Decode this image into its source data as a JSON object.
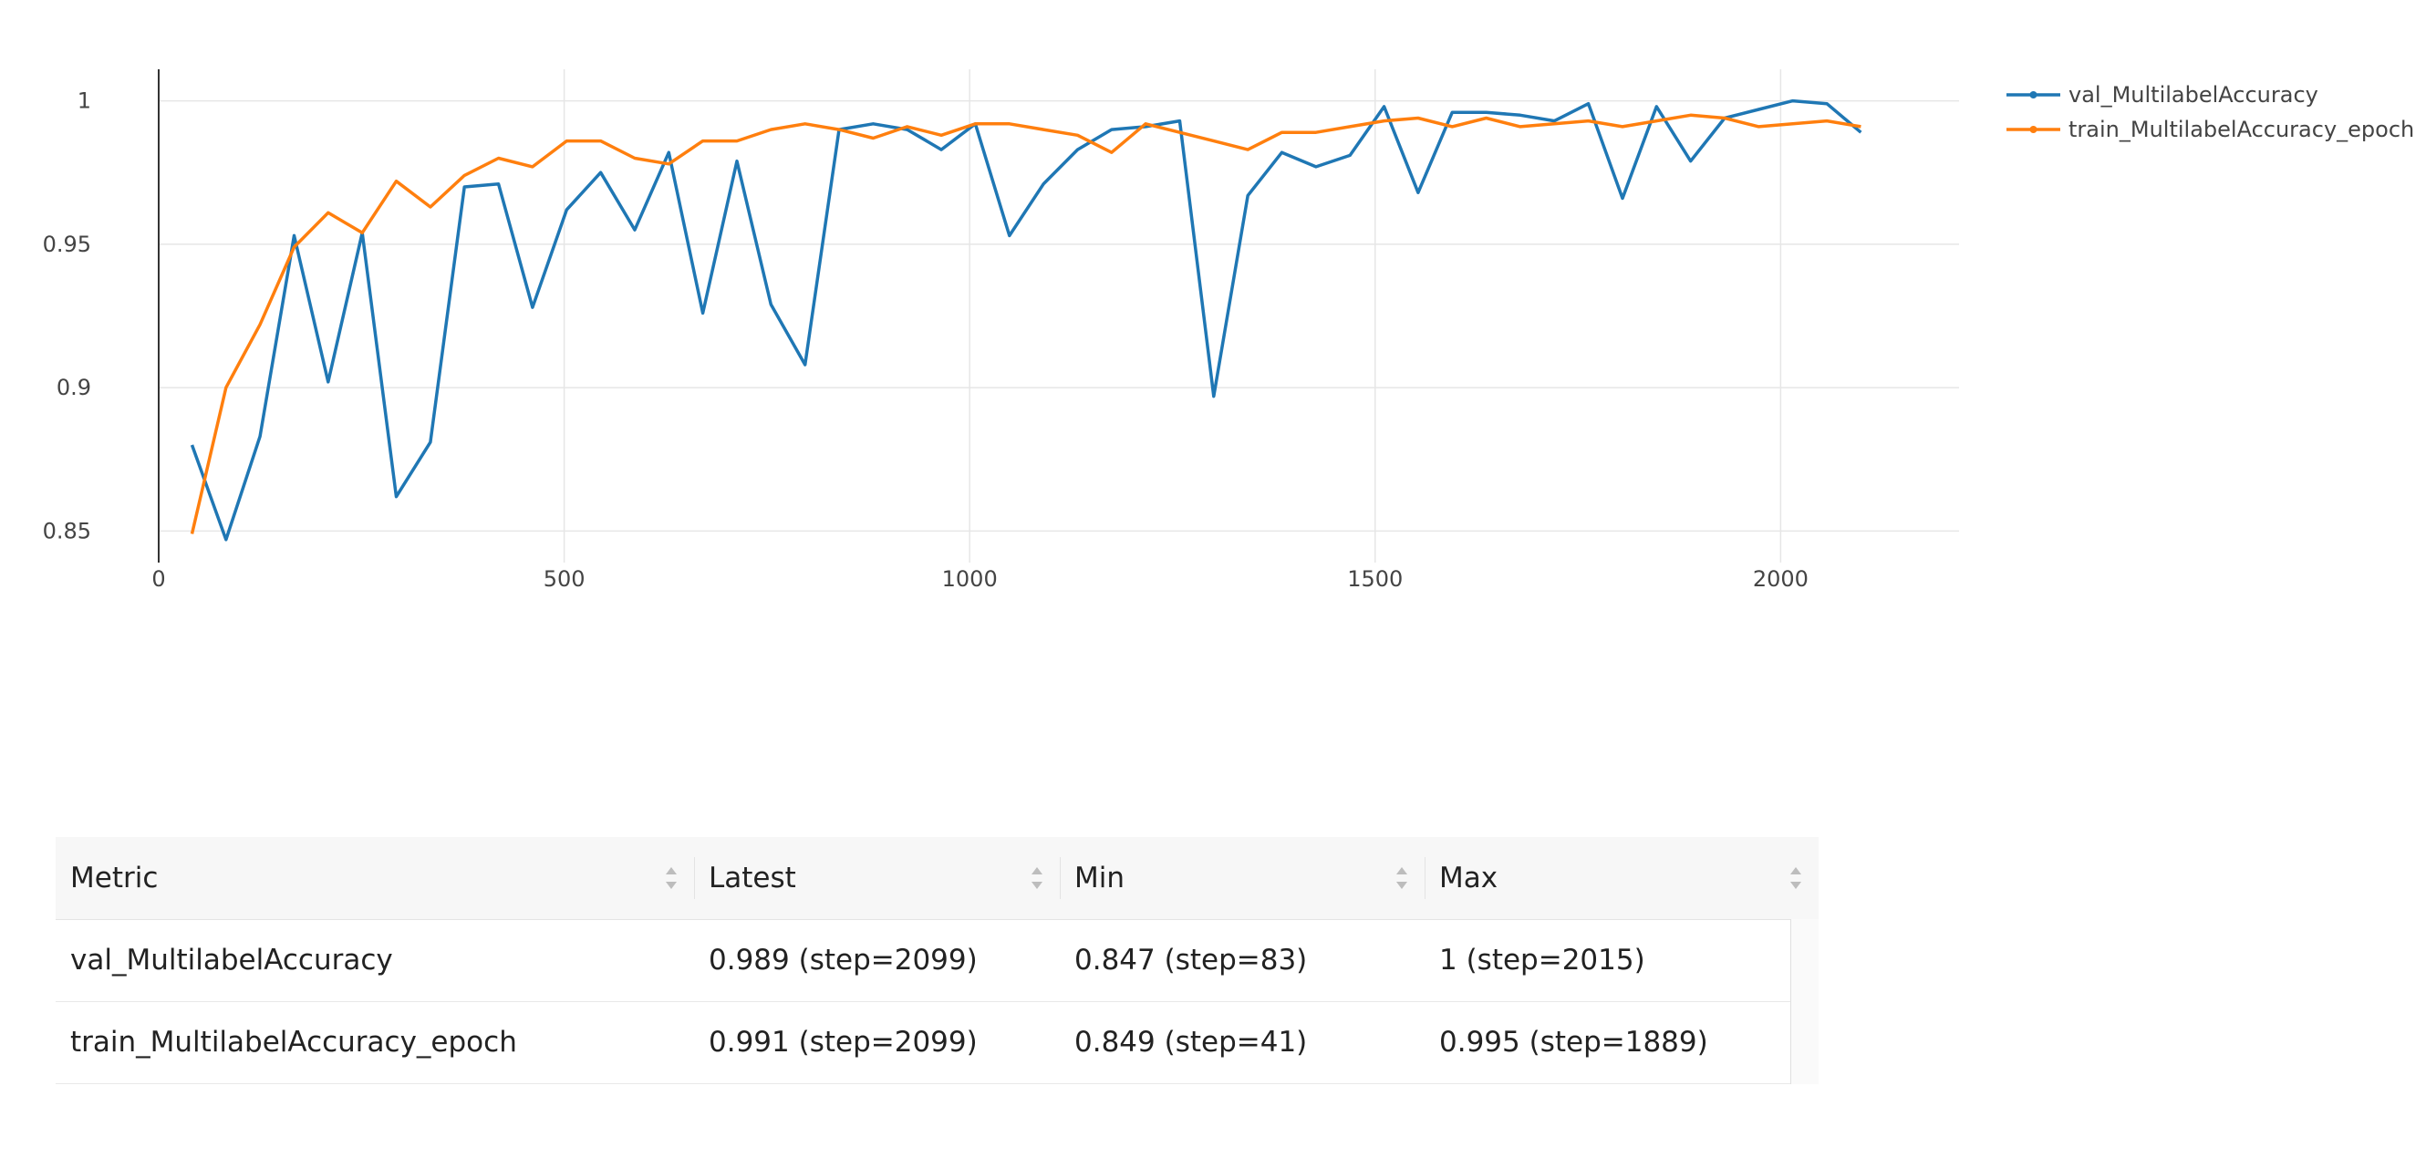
{
  "chart_data": {
    "type": "line",
    "xlim": [
      0,
      2220
    ],
    "ylim": [
      0.839,
      1.011
    ],
    "x_ticks": [
      0,
      500,
      1000,
      1500,
      2000
    ],
    "x_tick_labels": [
      "0",
      "500",
      "1000",
      "1500",
      "2000"
    ],
    "y_ticks": [
      0.85,
      0.9,
      0.95,
      1
    ],
    "y_tick_labels": [
      "0.85",
      "0.9",
      "0.95",
      "1"
    ],
    "grid": true,
    "legend": "top-right",
    "series": [
      {
        "name": "val_MultilabelAccuracy",
        "color": "#1f77b4",
        "x": [
          41,
          83,
          125,
          167,
          209,
          251,
          293,
          335,
          377,
          419,
          461,
          503,
          545,
          587,
          629,
          671,
          713,
          755,
          797,
          839,
          881,
          923,
          965,
          1007,
          1049,
          1091,
          1133,
          1175,
          1217,
          1259,
          1301,
          1343,
          1385,
          1427,
          1469,
          1511,
          1553,
          1595,
          1637,
          1679,
          1721,
          1763,
          1805,
          1847,
          1889,
          1931,
          1973,
          2015,
          2057,
          2099
        ],
        "y": [
          0.88,
          0.847,
          0.883,
          0.953,
          0.902,
          0.954,
          0.862,
          0.881,
          0.97,
          0.971,
          0.928,
          0.962,
          0.975,
          0.955,
          0.982,
          0.926,
          0.979,
          0.929,
          0.908,
          0.99,
          0.992,
          0.99,
          0.983,
          0.992,
          0.953,
          0.971,
          0.983,
          0.99,
          0.991,
          0.993,
          0.897,
          0.967,
          0.982,
          0.977,
          0.981,
          0.998,
          0.968,
          0.996,
          0.996,
          0.995,
          0.993,
          0.999,
          0.966,
          0.998,
          0.979,
          0.994,
          0.997,
          1.0,
          0.999,
          0.989
        ]
      },
      {
        "name": "train_MultilabelAccuracy_epoch",
        "color": "#ff7f0e",
        "x": [
          41,
          83,
          125,
          167,
          209,
          251,
          293,
          335,
          377,
          419,
          461,
          503,
          545,
          587,
          629,
          671,
          713,
          755,
          797,
          839,
          881,
          923,
          965,
          1007,
          1049,
          1091,
          1133,
          1175,
          1217,
          1259,
          1301,
          1343,
          1385,
          1427,
          1469,
          1511,
          1553,
          1595,
          1637,
          1679,
          1721,
          1763,
          1805,
          1847,
          1889,
          1931,
          1973,
          2015,
          2057,
          2099
        ],
        "y": [
          0.849,
          0.9,
          0.922,
          0.949,
          0.961,
          0.954,
          0.972,
          0.963,
          0.974,
          0.98,
          0.977,
          0.986,
          0.986,
          0.98,
          0.978,
          0.986,
          0.986,
          0.99,
          0.992,
          0.99,
          0.987,
          0.991,
          0.988,
          0.992,
          0.992,
          0.99,
          0.988,
          0.982,
          0.992,
          0.989,
          0.986,
          0.983,
          0.989,
          0.989,
          0.991,
          0.993,
          0.994,
          0.991,
          0.994,
          0.991,
          0.992,
          0.993,
          0.991,
          0.993,
          0.995,
          0.994,
          0.991,
          0.992,
          0.993,
          0.991
        ]
      }
    ]
  },
  "table": {
    "headers": {
      "metric": "Metric",
      "latest": "Latest",
      "min": "Min",
      "max": "Max"
    },
    "rows": [
      {
        "metric": "val_MultilabelAccuracy",
        "latest": "0.989 (step=2099)",
        "min": "0.847 (step=83)",
        "max": "1 (step=2015)"
      },
      {
        "metric": "train_MultilabelAccuracy_epoch",
        "latest": "0.991 (step=2099)",
        "min": "0.849 (step=41)",
        "max": "0.995 (step=1889)"
      }
    ]
  }
}
